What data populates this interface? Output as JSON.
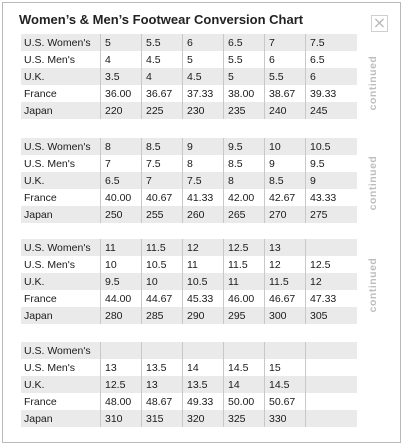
{
  "title": "Women’s & Men’s Footwear Conversion Chart",
  "close_icon": "close-icon",
  "continued_label": "continued",
  "row_labels": [
    "U.S. Women's",
    "U.S. Men's",
    "U.K.",
    "France",
    "Japan"
  ],
  "blocks": [
    {
      "rows": [
        [
          "5",
          "5.5",
          "6",
          "6.5",
          "7",
          "7.5"
        ],
        [
          "4",
          "4.5",
          "5",
          "5.5",
          "6",
          "6.5"
        ],
        [
          "3.5",
          "4",
          "4.5",
          "5",
          "5.5",
          "6"
        ],
        [
          "36.00",
          "36.67",
          "37.33",
          "38.00",
          "38.67",
          "39.33"
        ],
        [
          "220",
          "225",
          "230",
          "235",
          "240",
          "245"
        ]
      ]
    },
    {
      "rows": [
        [
          "8",
          "8.5",
          "9",
          "9.5",
          "10",
          "10.5"
        ],
        [
          "7",
          "7.5",
          "8",
          "8.5",
          "9",
          "9.5"
        ],
        [
          "6.5",
          "7",
          "7.5",
          "8",
          "8.5",
          "9"
        ],
        [
          "40.00",
          "40.67",
          "41.33",
          "42.00",
          "42.67",
          "43.33"
        ],
        [
          "250",
          "255",
          "260",
          "265",
          "270",
          "275"
        ]
      ]
    },
    {
      "rows": [
        [
          "11",
          "11.5",
          "12",
          "12.5",
          "13",
          ""
        ],
        [
          "10",
          "10.5",
          "11",
          "11.5",
          "12",
          "12.5"
        ],
        [
          "9.5",
          "10",
          "10.5",
          "11",
          "11.5",
          "12"
        ],
        [
          "44.00",
          "44.67",
          "45.33",
          "46.00",
          "46.67",
          "47.33"
        ],
        [
          "280",
          "285",
          "290",
          "295",
          "300",
          "305"
        ]
      ]
    },
    {
      "rows": [
        [
          "",
          "",
          "",
          "",
          "",
          ""
        ],
        [
          "13",
          "13.5",
          "14",
          "14.5",
          "15",
          ""
        ],
        [
          "12.5",
          "13",
          "13.5",
          "14",
          "14.5",
          ""
        ],
        [
          "48.00",
          "48.67",
          "49.33",
          "50.00",
          "50.67",
          ""
        ],
        [
          "310",
          "315",
          "320",
          "325",
          "330",
          ""
        ]
      ]
    }
  ]
}
